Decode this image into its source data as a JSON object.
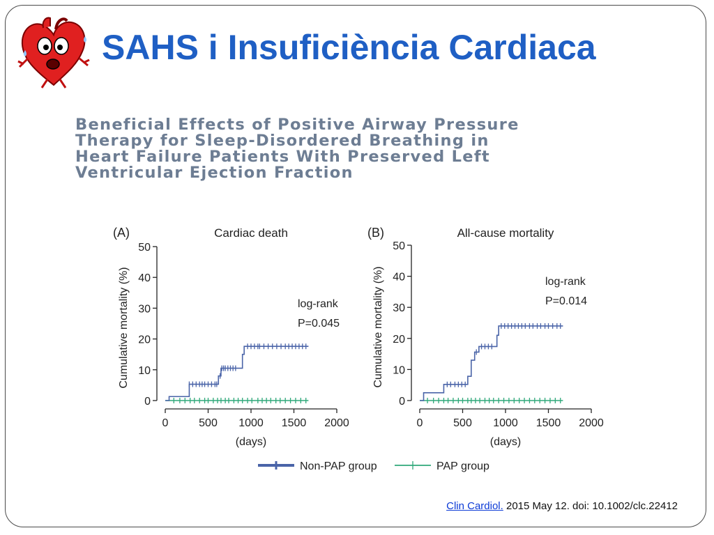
{
  "slide": {
    "title": "SAHS i Insuficiència Cardiaca",
    "logo_icon": "scared-heart-cartoon-icon",
    "paper_title_lines": [
      "Beneficial Effects of Positive Airway Pressure",
      "Therapy for Sleep-Disordered Breathing in",
      "Heart Failure Patients With Preserved Left",
      "Ventricular Ejection Fraction"
    ],
    "citation": {
      "link_text": "Clin Cardiol.",
      "rest": " 2015 May 12. doi: 10.1002/clc.22412"
    }
  },
  "colors": {
    "title": "#1f5fc4",
    "non_pap": "#4a64a8",
    "pap": "#2fa87a",
    "paper_title": "#6d7d93"
  },
  "legend": [
    {
      "label": "Non-PAP group",
      "color": "#4a64a8"
    },
    {
      "label": "PAP group",
      "color": "#2fa87a"
    }
  ],
  "chart_data": [
    {
      "type": "line",
      "panel": "(A)",
      "title": "Cardiac death",
      "xlabel": "(days)",
      "ylabel": "Cumulative mortality (%)",
      "xlim": [
        0,
        2000
      ],
      "ylim": [
        0,
        50
      ],
      "xticks": [
        "0",
        "500",
        "1000",
        "1500",
        "2000"
      ],
      "yticks": [
        "0",
        "10",
        "20",
        "30",
        "40",
        "50"
      ],
      "stat_lines": [
        "log-rank",
        "P=0.045"
      ],
      "series": [
        {
          "name": "Non-PAP group",
          "x": [
            0,
            45,
            250,
            280,
            560,
            620,
            650,
            720,
            850,
            900,
            920,
            1670
          ],
          "y": [
            0,
            1.3,
            1.3,
            5.3,
            5.3,
            8.0,
            10.5,
            10.5,
            10.5,
            15.0,
            17.6,
            17.6
          ],
          "censor_x": [
            280,
            320,
            360,
            400,
            430,
            460,
            500,
            540,
            580,
            600,
            640,
            660,
            680,
            700,
            730,
            760,
            790,
            820,
            960,
            1000,
            1040,
            1080,
            1100,
            1150,
            1200,
            1250,
            1300,
            1350,
            1400,
            1440,
            1480,
            1520,
            1560,
            1600,
            1640
          ]
        },
        {
          "name": "PAP group",
          "x": [
            0,
            1670
          ],
          "y": [
            0,
            0
          ],
          "censor_x": [
            100,
            170,
            230,
            290,
            340,
            400,
            460,
            500,
            560,
            610,
            650,
            700,
            740,
            800,
            850,
            900,
            960,
            1010,
            1080,
            1130,
            1180,
            1230,
            1290,
            1340,
            1400,
            1460,
            1520,
            1580,
            1640
          ]
        }
      ]
    },
    {
      "type": "line",
      "panel": "(B)",
      "title": "All-cause mortality",
      "xlabel": "(days)",
      "ylabel": "Cumulative mortality (%)",
      "xlim": [
        0,
        2000
      ],
      "ylim": [
        0,
        50
      ],
      "xticks": [
        "0",
        "500",
        "1000",
        "1500",
        "2000"
      ],
      "yticks": [
        "0",
        "10",
        "20",
        "30",
        "40",
        "50"
      ],
      "stat_lines": [
        "log-rank",
        "P=0.014"
      ],
      "series": [
        {
          "name": "Non-PAP group",
          "x": [
            0,
            45,
            260,
            280,
            560,
            600,
            640,
            690,
            870,
            900,
            920,
            1670
          ],
          "y": [
            0,
            2.5,
            2.5,
            5.2,
            7.8,
            13.0,
            15.6,
            17.4,
            17.4,
            21.0,
            24.0,
            24.0
          ],
          "censor_x": [
            320,
            360,
            410,
            450,
            490,
            530,
            660,
            720,
            760,
            800,
            840,
            950,
            990,
            1030,
            1070,
            1110,
            1150,
            1190,
            1230,
            1280,
            1320,
            1370,
            1410,
            1460,
            1500,
            1550,
            1600,
            1640
          ]
        },
        {
          "name": "PAP group",
          "x": [
            0,
            1670
          ],
          "y": [
            0,
            0
          ],
          "censor_x": [
            90,
            160,
            220,
            280,
            330,
            390,
            450,
            500,
            560,
            600,
            650,
            700,
            760,
            810,
            860,
            920,
            980,
            1040,
            1100,
            1160,
            1220,
            1280,
            1340,
            1400,
            1460,
            1520,
            1580,
            1640
          ]
        }
      ]
    }
  ]
}
